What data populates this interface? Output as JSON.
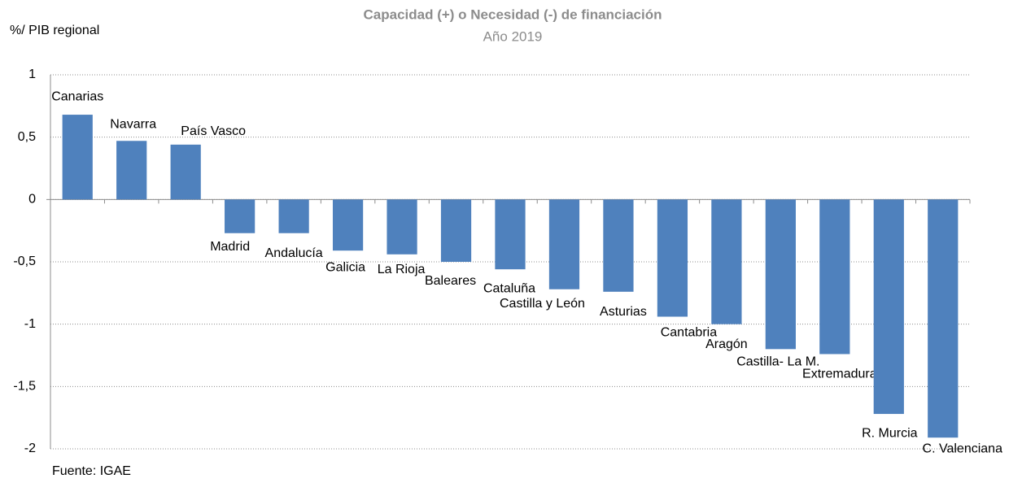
{
  "chart_data": {
    "type": "bar",
    "title": "Capacidad  (+) o Necesidad (-) de financiación",
    "subtitle": "Año 2019",
    "y_label": "%/ PIB regional",
    "source": "Fuente: IGAE",
    "categories": [
      "Canarias",
      "Navarra",
      "País Vasco",
      "Madrid",
      "Andalucía",
      "Galicia",
      "La Rioja",
      "Baleares",
      "Cataluña",
      "Castilla y León",
      "Asturias",
      "Cantabria",
      "Aragón",
      "Castilla- La M.",
      "Extremadura",
      "R. Murcia",
      "C. Valenciana"
    ],
    "values": [
      0.68,
      0.47,
      0.44,
      -0.27,
      -0.27,
      -0.41,
      -0.44,
      -0.5,
      -0.56,
      -0.72,
      -0.74,
      -0.94,
      -1.0,
      -1.2,
      -1.24,
      -1.72,
      -1.91
    ],
    "color": "#4f81bd",
    "ylim": [
      -2,
      1
    ],
    "yticks": [
      1,
      {
        "value": 0.5,
        "label": "0,5"
      },
      0,
      {
        "value": -0.5,
        "label": "-0,5"
      },
      -1,
      {
        "value": -1.5,
        "label": "-1,5"
      },
      -2
    ],
    "grid": true
  }
}
